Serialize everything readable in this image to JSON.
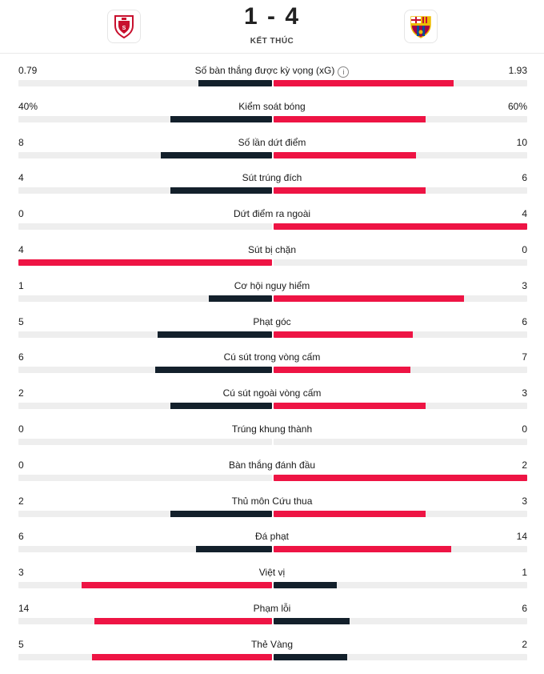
{
  "match": {
    "score": "1 - 4",
    "status": "KẾT THÚC",
    "home_crest_icon": "sevilla-crest-icon",
    "away_crest_icon": "barcelona-crest-icon"
  },
  "colors": {
    "leader": "#ee1444",
    "trailer": "#13202b",
    "track": "#eeeeee"
  },
  "stats": [
    {
      "label": "Số bàn thắng được kỳ vọng (xG)",
      "home": "0.79",
      "away": "1.93",
      "home_frac": 0.29,
      "away_frac": 0.71,
      "info": "i"
    },
    {
      "label": "Kiểm soát bóng",
      "home": "40%",
      "away": "60%",
      "home_frac": 0.4,
      "away_frac": 0.6
    },
    {
      "label": "Số lần dứt điểm",
      "home": "8",
      "away": "10",
      "home_frac": 0.44,
      "away_frac": 0.56
    },
    {
      "label": "Sút trúng đích",
      "home": "4",
      "away": "6",
      "home_frac": 0.4,
      "away_frac": 0.6
    },
    {
      "label": "Dứt điểm ra ngoài",
      "home": "0",
      "away": "4",
      "home_frac": 0.0,
      "away_frac": 1.0
    },
    {
      "label": "Sút bị chặn",
      "home": "4",
      "away": "0",
      "home_frac": 1.0,
      "away_frac": 0.0
    },
    {
      "label": "Cơ hội nguy hiểm",
      "home": "1",
      "away": "3",
      "home_frac": 0.25,
      "away_frac": 0.75
    },
    {
      "label": "Phạt góc",
      "home": "5",
      "away": "6",
      "home_frac": 0.45,
      "away_frac": 0.55
    },
    {
      "label": "Cú sút trong vòng cấm",
      "home": "6",
      "away": "7",
      "home_frac": 0.46,
      "away_frac": 0.54
    },
    {
      "label": "Cú sút ngoài vòng cấm",
      "home": "2",
      "away": "3",
      "home_frac": 0.4,
      "away_frac": 0.6
    },
    {
      "label": "Trúng khung thành",
      "home": "0",
      "away": "0",
      "home_frac": 0.0,
      "away_frac": 0.0
    },
    {
      "label": "Bàn thắng đánh đầu",
      "home": "0",
      "away": "2",
      "home_frac": 0.0,
      "away_frac": 1.0
    },
    {
      "label": "Thủ môn Cứu thua",
      "home": "2",
      "away": "3",
      "home_frac": 0.4,
      "away_frac": 0.6
    },
    {
      "label": "Đá phạt",
      "home": "6",
      "away": "14",
      "home_frac": 0.3,
      "away_frac": 0.7
    },
    {
      "label": "Việt vị",
      "home": "3",
      "away": "1",
      "home_frac": 0.75,
      "away_frac": 0.25
    },
    {
      "label": "Phạm lỗi",
      "home": "14",
      "away": "6",
      "home_frac": 0.7,
      "away_frac": 0.3
    },
    {
      "label": "Thẻ Vàng",
      "home": "5",
      "away": "2",
      "home_frac": 0.71,
      "away_frac": 0.29
    }
  ]
}
